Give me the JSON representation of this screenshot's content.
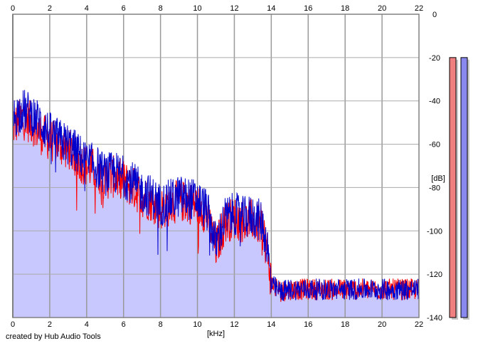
{
  "chart_data": {
    "type": "area",
    "x_unit_label": "[kHz]",
    "y_unit_label": "[dB]",
    "x_ticks": [
      0,
      2,
      4,
      6,
      8,
      10,
      12,
      14,
      16,
      18,
      20,
      22
    ],
    "y_ticks": [
      0,
      -20,
      -40,
      -60,
      -80,
      -100,
      -120,
      -140
    ],
    "xlim": [
      0,
      22
    ],
    "ylim": [
      -140,
      0
    ],
    "grid": true,
    "series": [
      {
        "channel": "left",
        "color": "#ff0000",
        "x": [
          0,
          0.5,
          1,
          1.5,
          2,
          2.5,
          3,
          3.5,
          4,
          4.5,
          5,
          5.5,
          6,
          6.5,
          7,
          7.5,
          8,
          8.5,
          9,
          9.5,
          10,
          10.5,
          11,
          11.5,
          12,
          12.5,
          13,
          13.5,
          13.8,
          14,
          14.5,
          15,
          16,
          17,
          18,
          19,
          20,
          21,
          22
        ],
        "y": [
          -52,
          -48,
          -50,
          -55,
          -58,
          -60,
          -62,
          -67,
          -70,
          -72,
          -76,
          -75,
          -77,
          -80,
          -84,
          -86,
          -90,
          -88,
          -86,
          -87,
          -88,
          -92,
          -108,
          -96,
          -94,
          -96,
          -95,
          -98,
          -110,
          -124,
          -128,
          -127,
          -127,
          -127,
          -127,
          -127,
          -127,
          -127,
          -127
        ]
      },
      {
        "channel": "right",
        "color": "#0000cc",
        "x": [
          0,
          0.5,
          1,
          1.5,
          2,
          2.5,
          3,
          3.5,
          4,
          4.5,
          5,
          5.5,
          6,
          6.5,
          7,
          7.5,
          8,
          8.5,
          9,
          9.5,
          10,
          10.5,
          11,
          11.5,
          12,
          12.5,
          13,
          13.5,
          13.8,
          14,
          14.5,
          15,
          16,
          17,
          18,
          19,
          20,
          21,
          22
        ],
        "y": [
          -48,
          -44,
          -46,
          -50,
          -55,
          -58,
          -60,
          -64,
          -68,
          -70,
          -74,
          -73,
          -75,
          -78,
          -82,
          -84,
          -88,
          -86,
          -84,
          -85,
          -86,
          -90,
          -106,
          -94,
          -92,
          -94,
          -93,
          -96,
          -108,
          -125,
          -128,
          -127,
          -127,
          -127,
          -127,
          -127,
          -127,
          -127,
          -127
        ]
      }
    ],
    "fill_color": "#c8c8ff",
    "meters": [
      {
        "channel": "left",
        "color": "#f08080",
        "level_db": -20
      },
      {
        "channel": "right",
        "color": "#8888ee",
        "level_db": -20
      }
    ]
  },
  "credit": "created by Hub Audio Tools"
}
